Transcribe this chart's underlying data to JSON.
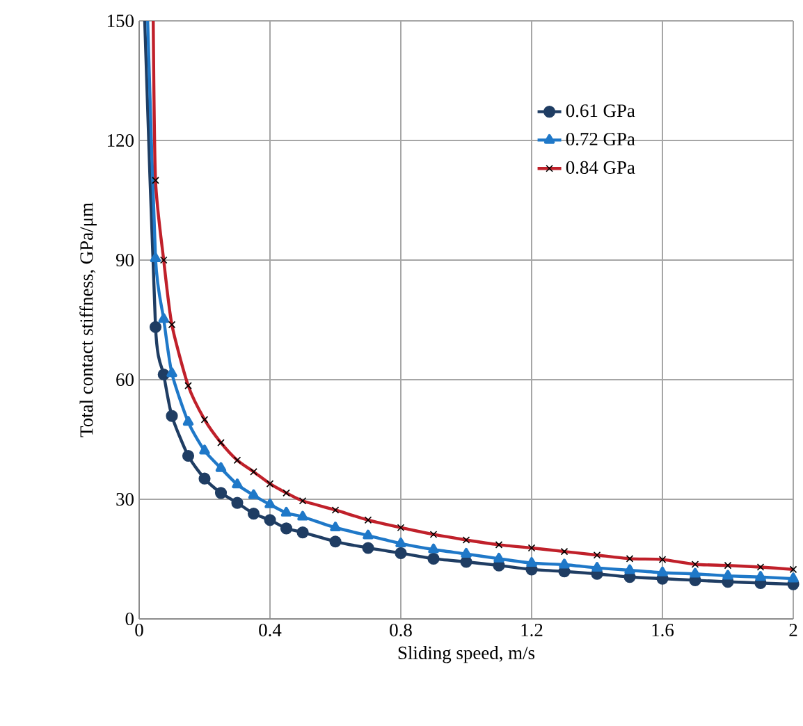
{
  "chart_data": {
    "type": "line",
    "xlabel": "Sliding speed, m/s",
    "ylabel": "Total contact stiffness, GPa/μm",
    "xlim": [
      0,
      2
    ],
    "ylim": [
      0,
      150
    ],
    "xticks": [
      0,
      0.4,
      0.8,
      1.2,
      1.6,
      2
    ],
    "yticks": [
      0,
      30,
      60,
      90,
      120,
      150
    ],
    "grid": true,
    "legend": "top right",
    "series": [
      {
        "name": "0.61 GPa",
        "color": "#1f3d63",
        "marker": "circle",
        "x": [
          0.017,
          0.05,
          0.075,
          0.1,
          0.15,
          0.2,
          0.25,
          0.3,
          0.35,
          0.4,
          0.45,
          0.5,
          0.6,
          0.7,
          0.8,
          0.9,
          1.0,
          1.1,
          1.2,
          1.3,
          1.4,
          1.5,
          1.6,
          1.7,
          1.8,
          1.9,
          2.0
        ],
        "values": [
          150,
          73.2,
          61.3,
          50.9,
          40.9,
          35.2,
          31.6,
          29.1,
          26.4,
          24.8,
          22.7,
          21.7,
          19.4,
          17.8,
          16.5,
          15.1,
          14.3,
          13.4,
          12.4,
          11.9,
          11.3,
          10.5,
          10.1,
          9.7,
          9.3,
          9.0,
          8.7
        ]
      },
      {
        "name": "0.72 GPa",
        "color": "#1f78c8",
        "marker": "triangle",
        "x": [
          0.026,
          0.05,
          0.075,
          0.1,
          0.15,
          0.2,
          0.25,
          0.3,
          0.35,
          0.4,
          0.45,
          0.5,
          0.6,
          0.7,
          0.8,
          0.9,
          1.0,
          1.1,
          1.2,
          1.3,
          1.4,
          1.5,
          1.6,
          1.7,
          1.8,
          1.9,
          2.0
        ],
        "values": [
          150,
          90.4,
          75.2,
          61.6,
          49.4,
          42.2,
          37.8,
          33.7,
          31.0,
          28.7,
          26.6,
          25.6,
          22.9,
          20.9,
          18.9,
          17.4,
          16.3,
          15.1,
          14.0,
          13.6,
          12.8,
          12.2,
          11.6,
          11.3,
          10.8,
          10.5,
          10.1
        ]
      },
      {
        "name": "0.84 GPa",
        "color": "#c0202a",
        "marker": "cross",
        "x": [
          0.043,
          0.05,
          0.075,
          0.1,
          0.15,
          0.2,
          0.25,
          0.3,
          0.35,
          0.4,
          0.45,
          0.5,
          0.6,
          0.7,
          0.8,
          0.9,
          1.0,
          1.1,
          1.2,
          1.3,
          1.4,
          1.5,
          1.6,
          1.7,
          1.8,
          1.9,
          2.0
        ],
        "values": [
          150,
          110,
          90,
          73.8,
          58.5,
          50.0,
          44.2,
          39.8,
          36.9,
          33.9,
          31.6,
          29.6,
          27.3,
          24.8,
          22.9,
          21.2,
          19.8,
          18.6,
          17.8,
          16.9,
          16.0,
          15.1,
          14.9,
          13.7,
          13.4,
          13.0,
          12.4
        ]
      }
    ]
  }
}
